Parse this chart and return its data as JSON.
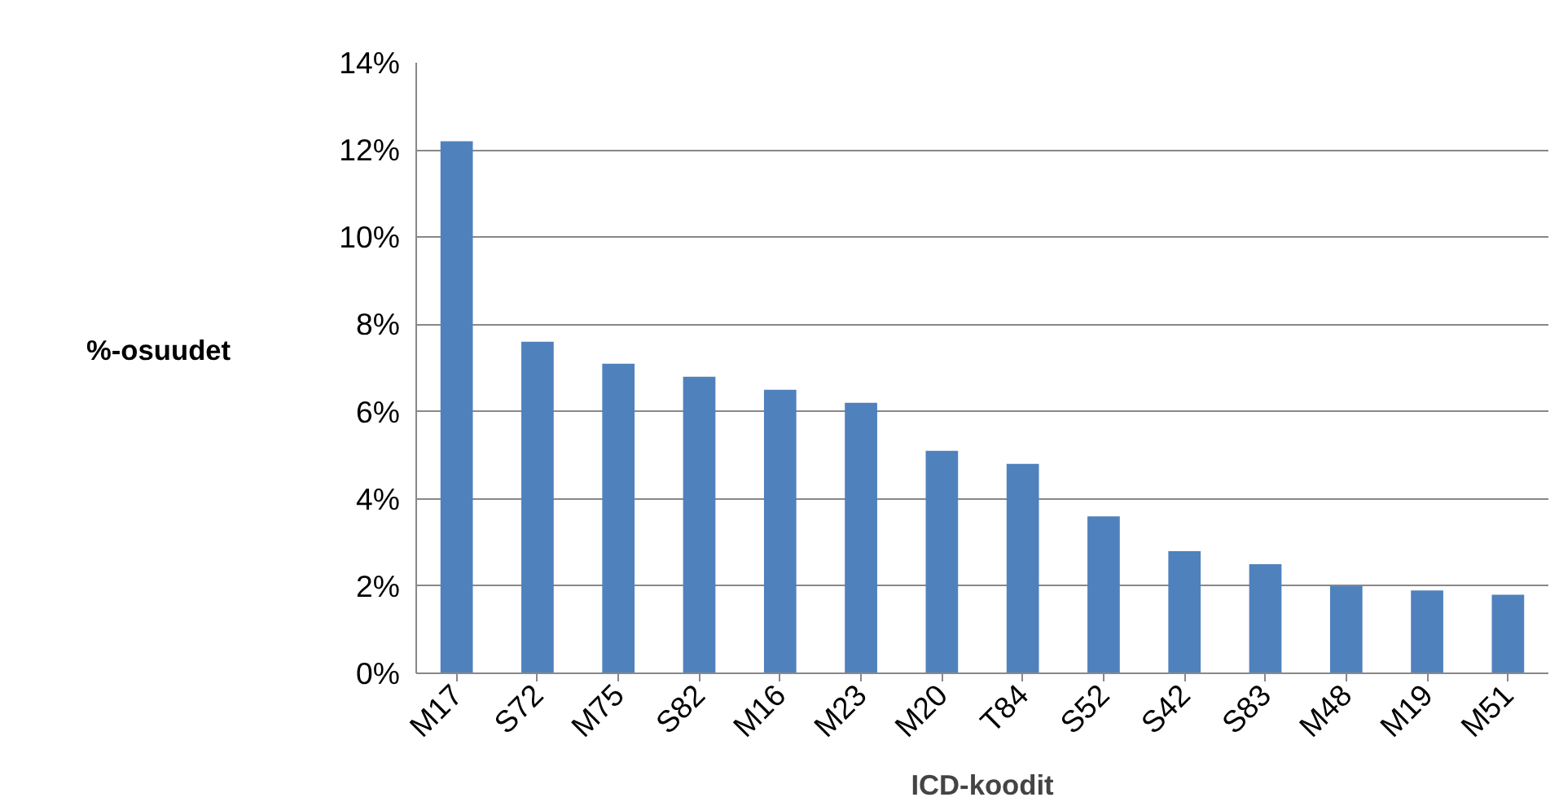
{
  "chart_data": {
    "type": "bar",
    "xlabel": "ICD-koodit",
    "ylabel": "%-osuudet",
    "categories": [
      "M17",
      "S72",
      "M75",
      "S82",
      "M16",
      "M23",
      "M20",
      "T84",
      "S52",
      "S42",
      "S83",
      "M48",
      "M19",
      "M51"
    ],
    "values": [
      12.2,
      7.6,
      7.1,
      6.8,
      6.5,
      6.2,
      5.1,
      4.8,
      3.6,
      2.8,
      2.5,
      2.0,
      1.9,
      1.8
    ],
    "color": "#4f81bd",
    "ylim": [
      0,
      14
    ],
    "yticks": [
      {
        "value": 0,
        "label": "0%"
      },
      {
        "value": 2,
        "label": "2%"
      },
      {
        "value": 4,
        "label": "4%"
      },
      {
        "value": 6,
        "label": "6%"
      },
      {
        "value": 8,
        "label": "8%"
      },
      {
        "value": 10,
        "label": "10%"
      },
      {
        "value": 12,
        "label": "12%"
      },
      {
        "value": 14,
        "label": "14%"
      }
    ],
    "grid": "y"
  }
}
